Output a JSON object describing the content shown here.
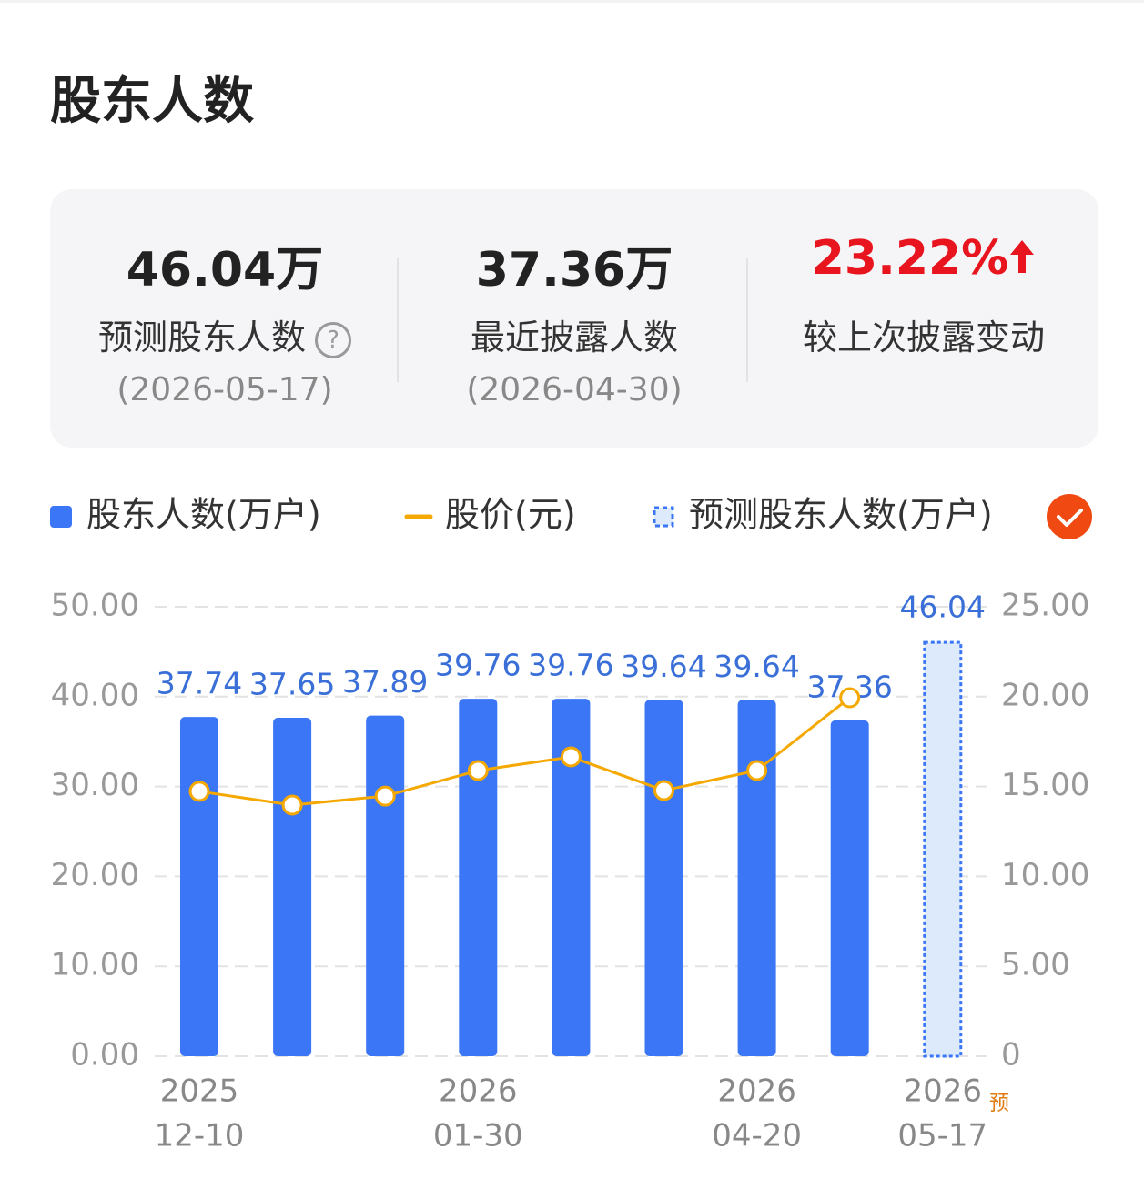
{
  "title": "股东人数",
  "summary": [
    {
      "value": "46.04万",
      "label": "预测股东人数",
      "date": "(2026-05-17)"
    },
    {
      "value": "37.36万",
      "label": "最近披露人数",
      "date": "(2026-04-30)"
    },
    {
      "value": "23.22%",
      "label": "较上次披露变动"
    }
  ],
  "chart_data": {
    "type": "bar_line",
    "categories": [
      [
        "2025",
        "12-10"
      ],
      null,
      null,
      [
        "2026",
        "01-30"
      ],
      null,
      null,
      [
        "2026",
        "04-20"
      ],
      null,
      [
        "2026",
        "05-17"
      ]
    ],
    "forecast_marker": "预",
    "series": [
      {
        "name": "股东人数(万户)",
        "type": "bar",
        "color": "#3a76f5",
        "values": [
          37.74,
          37.65,
          37.89,
          39.76,
          39.76,
          39.64,
          39.64,
          37.36,
          null
        ]
      },
      {
        "name": "股价(元)",
        "type": "line",
        "axis": "y2",
        "color": "#f5a800",
        "values": [
          14.73,
          13.97,
          14.47,
          15.89,
          16.65,
          14.78,
          15.89,
          19.94,
          null
        ]
      },
      {
        "name": "预测股东人数(万户)",
        "type": "forecast_bar",
        "color": "#3a76f5",
        "values": [
          null,
          null,
          null,
          null,
          null,
          null,
          null,
          null,
          46.04
        ]
      }
    ],
    "ylim": [
      0,
      50
    ],
    "yticks": [
      {
        "value": 0,
        "label": "0.00"
      },
      {
        "value": 10,
        "label": "10.00"
      },
      {
        "value": 20,
        "label": "20.00"
      },
      {
        "value": 30,
        "label": "30.00"
      },
      {
        "value": 40,
        "label": "40.00"
      },
      {
        "value": 50,
        "label": "50.00"
      }
    ],
    "y2lim": [
      0,
      25
    ],
    "y2ticks": [
      0,
      {
        "value": 5,
        "label": "5.00"
      },
      {
        "value": 10,
        "label": "10.00"
      },
      {
        "value": 15,
        "label": "15.00"
      },
      {
        "value": 20,
        "label": "20.00"
      },
      {
        "value": 25,
        "label": "25.00"
      }
    ],
    "grid": true
  }
}
